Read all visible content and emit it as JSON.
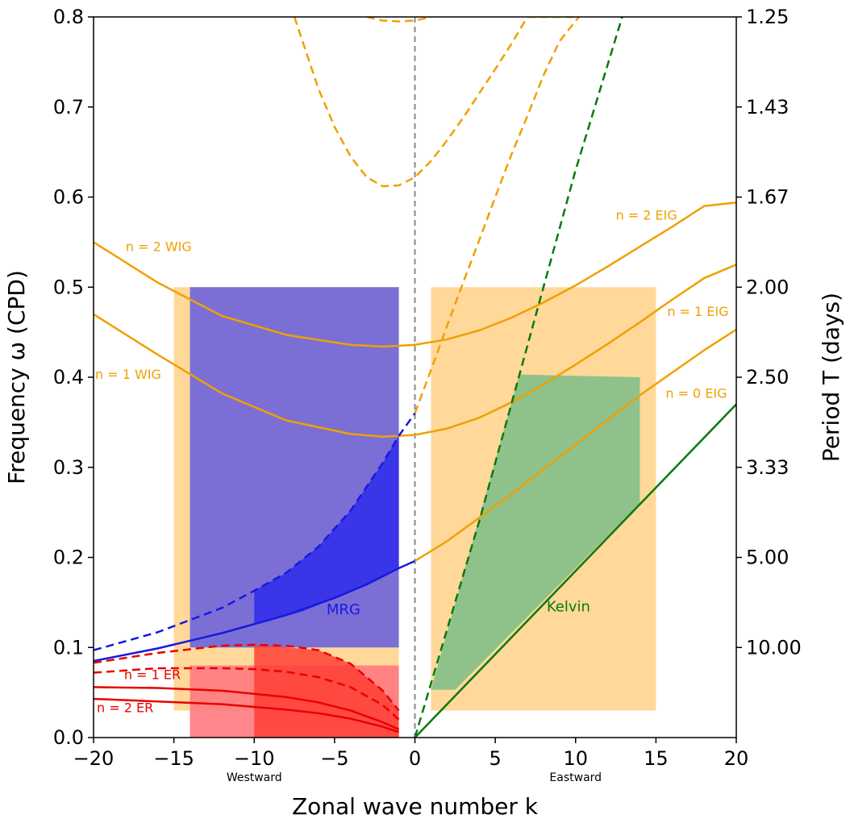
{
  "chart_data": {
    "type": "line",
    "xlabel": "Zonal wave number k",
    "ylabel": "Frequency ω (CPD)",
    "y2label": "Period T (days)",
    "xlim": [
      -20,
      20
    ],
    "ylim": [
      0,
      0.8
    ],
    "x_ticks": [
      -20,
      -15,
      -10,
      -5,
      0,
      5,
      10,
      15,
      20
    ],
    "y_ticks": [
      0.0,
      0.1,
      0.2,
      0.3,
      0.4,
      0.5,
      0.6,
      0.7,
      0.8
    ],
    "y_tick_labels": [
      "0.0",
      "0.1",
      "0.2",
      "0.3",
      "0.4",
      "0.5",
      "0.6",
      "0.7",
      "0.8"
    ],
    "y2_ticks": [
      {
        "freq": 0.8,
        "label": "1.25"
      },
      {
        "freq": 0.7,
        "label": "1.43"
      },
      {
        "freq": 0.6,
        "label": "1.67"
      },
      {
        "freq": 0.5,
        "label": "2.00"
      },
      {
        "freq": 0.4,
        "label": "2.50"
      },
      {
        "freq": 0.3,
        "label": "3.33"
      },
      {
        "freq": 0.2,
        "label": "5.00"
      },
      {
        "freq": 0.1,
        "label": "10.00"
      }
    ],
    "annotations": [
      {
        "text": "Westward",
        "x": -10,
        "y": -0.04
      },
      {
        "text": "Eastward",
        "x": 10,
        "y": -0.04
      }
    ],
    "colors": {
      "ig": "#f0a000",
      "mrg": "#1818e0",
      "er": "#e80000",
      "kelvin": "#0a7a0a",
      "box_orange": "#ffd89a",
      "box_purple": "#7b6fd6",
      "box_blue": "#3a35e8",
      "box_green": "#8fc28a",
      "box_red_light": "#ff6f60",
      "box_red_dark": "#ff3a30",
      "box_pink": "#ff7a80",
      "zero_line": "#888888"
    },
    "boxes": [
      {
        "name": "westward-orange-region",
        "x": [
          -15,
          -1
        ],
        "y": [
          0.03,
          0.5
        ],
        "color": "box_orange",
        "opacity": 1
      },
      {
        "name": "eastward-orange-region",
        "x": [
          1,
          15
        ],
        "y": [
          0.03,
          0.5
        ],
        "color": "box_orange",
        "opacity": 1
      },
      {
        "name": "mrg-purple-region",
        "x": [
          -14,
          -1
        ],
        "y": [
          0.1,
          0.5
        ],
        "color": "box_purple",
        "opacity": 1
      },
      {
        "name": "er-pink-region",
        "x": [
          -14,
          -1
        ],
        "y": [
          0.0,
          0.08
        ],
        "color": "box_pink",
        "opacity": 0.9
      }
    ],
    "polygons": [
      {
        "name": "mrg-blue-region",
        "color": "box_blue",
        "opacity": 1,
        "points": [
          [
            -10,
            0.125
          ],
          [
            -10,
            0.163
          ],
          [
            -8,
            0.183
          ],
          [
            -6,
            0.212
          ],
          [
            -4,
            0.252
          ],
          [
            -2,
            0.305
          ],
          [
            -1,
            0.335
          ],
          [
            -1,
            0.188
          ],
          [
            -4,
            0.162
          ],
          [
            -7,
            0.14
          ]
        ]
      },
      {
        "name": "kelvin-green-region",
        "color": "box_green",
        "opacity": 1,
        "points": [
          [
            1,
            0.053
          ],
          [
            6.5,
            0.403
          ],
          [
            14,
            0.4
          ],
          [
            14,
            0.26
          ],
          [
            2.5,
            0.053
          ]
        ]
      },
      {
        "name": "er-red-region",
        "color": "box_red_dark",
        "opacity": 0.8,
        "points": [
          [
            -10,
            0.032
          ],
          [
            -10,
            0.103
          ],
          [
            -6,
            0.097
          ],
          [
            -4,
            0.082
          ],
          [
            -2,
            0.052
          ],
          [
            -1,
            0.03
          ],
          [
            -1,
            0.0
          ],
          [
            -10,
            0.0
          ]
        ]
      }
    ],
    "series": [
      {
        "name": "n=0 EIG",
        "color": "ig",
        "style": "solid",
        "x": [
          0,
          2,
          4,
          6,
          8,
          10,
          12,
          14,
          16,
          18,
          20
        ],
        "y": [
          0.196,
          0.218,
          0.244,
          0.27,
          0.298,
          0.325,
          0.353,
          0.38,
          0.405,
          0.43,
          0.453
        ]
      },
      {
        "name": "n=1 EIG",
        "color": "ig",
        "style": "solid",
        "x": [
          -20,
          -16,
          -12,
          -8,
          -4,
          -2,
          0,
          2,
          4,
          6,
          8,
          10,
          12,
          14,
          16,
          18,
          20
        ],
        "y": [
          0.47,
          0.425,
          0.382,
          0.352,
          0.337,
          0.334,
          0.336,
          0.343,
          0.355,
          0.372,
          0.392,
          0.414,
          0.437,
          0.461,
          0.486,
          0.51,
          0.525
        ]
      },
      {
        "name": "n=2 EIG",
        "color": "ig",
        "style": "solid",
        "x": [
          -20,
          -16,
          -12,
          -8,
          -4,
          -2,
          0,
          2,
          4,
          6,
          8,
          10,
          12,
          14,
          16,
          18,
          20
        ],
        "y": [
          0.55,
          0.505,
          0.468,
          0.447,
          0.436,
          0.434,
          0.436,
          0.442,
          0.452,
          0.466,
          0.483,
          0.502,
          0.523,
          0.545,
          0.567,
          0.59,
          0.594
        ]
      },
      {
        "name": "n=1 IG (shallow)",
        "color": "ig",
        "style": "dashed",
        "x": [
          -7.5,
          -6,
          -5,
          -4,
          -3,
          -2,
          -1,
          0,
          1,
          2,
          3,
          4,
          5,
          6,
          7,
          8,
          9,
          10.2
        ],
        "y": [
          0.8,
          0.72,
          0.678,
          0.645,
          0.622,
          0.612,
          0.613,
          0.622,
          0.64,
          0.663,
          0.688,
          0.715,
          0.742,
          0.77,
          0.8,
          0.8,
          0.8,
          0.8
        ]
      },
      {
        "name": "n=0 EIG (shallow)",
        "color": "ig",
        "style": "dashed",
        "x": [
          0,
          1,
          2,
          3,
          4,
          5,
          6,
          7,
          8,
          9,
          10.2
        ],
        "y": [
          0.36,
          0.408,
          0.457,
          0.505,
          0.552,
          0.6,
          0.647,
          0.69,
          0.735,
          0.773,
          0.8
        ]
      },
      {
        "name": "n=2 IG (shallow)",
        "color": "ig",
        "style": "dashed",
        "x": [
          -3,
          -2,
          -1,
          0,
          1
        ],
        "y": [
          0.8,
          0.796,
          0.795,
          0.796,
          0.8
        ]
      },
      {
        "name": "MRG",
        "color": "mrg",
        "style": "solid",
        "x": [
          -20,
          -16,
          -12,
          -8,
          -5,
          -3,
          -1,
          0
        ],
        "y": [
          0.085,
          0.099,
          0.116,
          0.136,
          0.155,
          0.17,
          0.188,
          0.196
        ]
      },
      {
        "name": "MRG (shallow)",
        "color": "mrg",
        "style": "dashed",
        "x": [
          -20,
          -16,
          -12,
          -10,
          -8,
          -6,
          -4,
          -2,
          -1,
          0
        ],
        "y": [
          0.097,
          0.117,
          0.144,
          0.163,
          0.183,
          0.212,
          0.252,
          0.305,
          0.335,
          0.36
        ]
      },
      {
        "name": "n=1 ER",
        "color": "er",
        "style": "solid",
        "x": [
          -20,
          -16,
          -12,
          -8,
          -6,
          -4,
          -2,
          -1
        ],
        "y": [
          0.056,
          0.055,
          0.052,
          0.045,
          0.039,
          0.03,
          0.017,
          0.009
        ]
      },
      {
        "name": "n=2 ER",
        "color": "er",
        "style": "solid",
        "x": [
          -20,
          -16,
          -12,
          -8,
          -6,
          -4,
          -2,
          -1
        ],
        "y": [
          0.043,
          0.04,
          0.037,
          0.031,
          0.027,
          0.021,
          0.012,
          0.006
        ]
      },
      {
        "name": "n=1 ER (shallow)",
        "color": "er",
        "style": "dashed",
        "x": [
          -20,
          -16,
          -12,
          -10,
          -8,
          -6,
          -4,
          -2,
          -1
        ],
        "y": [
          0.083,
          0.094,
          0.102,
          0.103,
          0.102,
          0.097,
          0.082,
          0.052,
          0.03
        ]
      },
      {
        "name": "n=2 ER (shallow)",
        "color": "er",
        "style": "dashed",
        "x": [
          -20,
          -16,
          -12,
          -10,
          -8,
          -6,
          -4,
          -2,
          -1
        ],
        "y": [
          0.072,
          0.077,
          0.077,
          0.076,
          0.073,
          0.067,
          0.056,
          0.036,
          0.02
        ]
      },
      {
        "name": "Kelvin",
        "color": "kelvin",
        "style": "solid",
        "x": [
          0,
          20
        ],
        "y": [
          0.0,
          0.37
        ]
      },
      {
        "name": "Kelvin (shallow)",
        "color": "kelvin",
        "style": "dashed",
        "x": [
          0,
          2,
          4,
          6,
          8,
          10,
          12.9
        ],
        "y": [
          0.0,
          0.12,
          0.24,
          0.37,
          0.5,
          0.63,
          0.8
        ]
      }
    ],
    "labels": [
      {
        "text": "n = 2 WIG",
        "x": -18,
        "y": 0.54,
        "color": "ig",
        "size": "curve"
      },
      {
        "text": "n = 1 WIG",
        "x": -19.9,
        "y": 0.398,
        "color": "ig",
        "size": "curve"
      },
      {
        "text": "n = 2 EIG",
        "x": 12.5,
        "y": 0.575,
        "color": "ig",
        "size": "curve"
      },
      {
        "text": "n = 1 EIG",
        "x": 15.7,
        "y": 0.468,
        "color": "ig",
        "size": "curve"
      },
      {
        "text": "n = 0 EIG",
        "x": 15.6,
        "y": 0.377,
        "color": "ig",
        "size": "curve"
      },
      {
        "text": "MRG",
        "x": -5.5,
        "y": 0.137,
        "color": "mrg",
        "size": "big"
      },
      {
        "text": "Kelvin",
        "x": 8.2,
        "y": 0.14,
        "color": "kelvin",
        "size": "big"
      },
      {
        "text": "n = 1 ER",
        "x": -18.1,
        "y": 0.065,
        "color": "er",
        "size": "curve"
      },
      {
        "text": "n = 2 ER",
        "x": -19.8,
        "y": 0.028,
        "color": "er",
        "size": "curve"
      }
    ]
  }
}
